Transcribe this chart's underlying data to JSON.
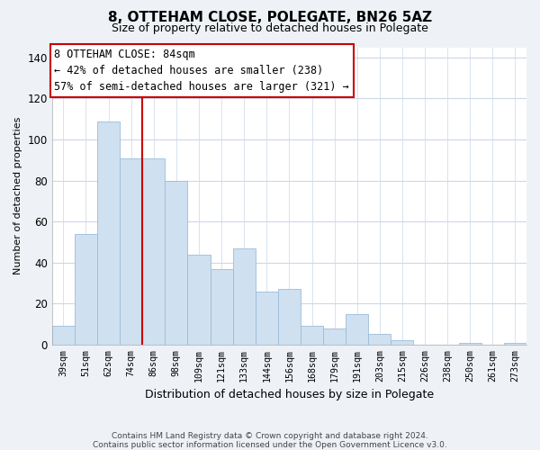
{
  "title": "8, OTTEHAM CLOSE, POLEGATE, BN26 5AZ",
  "subtitle": "Size of property relative to detached houses in Polegate",
  "xlabel": "Distribution of detached houses by size in Polegate",
  "ylabel": "Number of detached properties",
  "categories": [
    "39sqm",
    "51sqm",
    "62sqm",
    "74sqm",
    "86sqm",
    "98sqm",
    "109sqm",
    "121sqm",
    "133sqm",
    "144sqm",
    "156sqm",
    "168sqm",
    "179sqm",
    "191sqm",
    "203sqm",
    "215sqm",
    "226sqm",
    "238sqm",
    "250sqm",
    "261sqm",
    "273sqm"
  ],
  "values": [
    9,
    54,
    109,
    91,
    91,
    80,
    44,
    37,
    47,
    26,
    27,
    9,
    8,
    15,
    5,
    2,
    0,
    0,
    1,
    0,
    1
  ],
  "bar_color": "#cfe0f0",
  "bar_edge_color": "#9bbcd8",
  "vline_x_index": 4,
  "vline_color": "#cc0000",
  "ylim": [
    0,
    145
  ],
  "yticks": [
    0,
    20,
    40,
    60,
    80,
    100,
    120,
    140
  ],
  "annotation_title": "8 OTTEHAM CLOSE: 84sqm",
  "annotation_line1": "← 42% of detached houses are smaller (238)",
  "annotation_line2": "57% of semi-detached houses are larger (321) →",
  "annotation_box_color": "#ffffff",
  "annotation_box_edgecolor": "#cc0000",
  "footnote1": "Contains HM Land Registry data © Crown copyright and database right 2024.",
  "footnote2": "Contains public sector information licensed under the Open Government Licence v3.0.",
  "background_color": "#eef2f7",
  "plot_background": "#ffffff",
  "grid_color": "#ccd8e8"
}
